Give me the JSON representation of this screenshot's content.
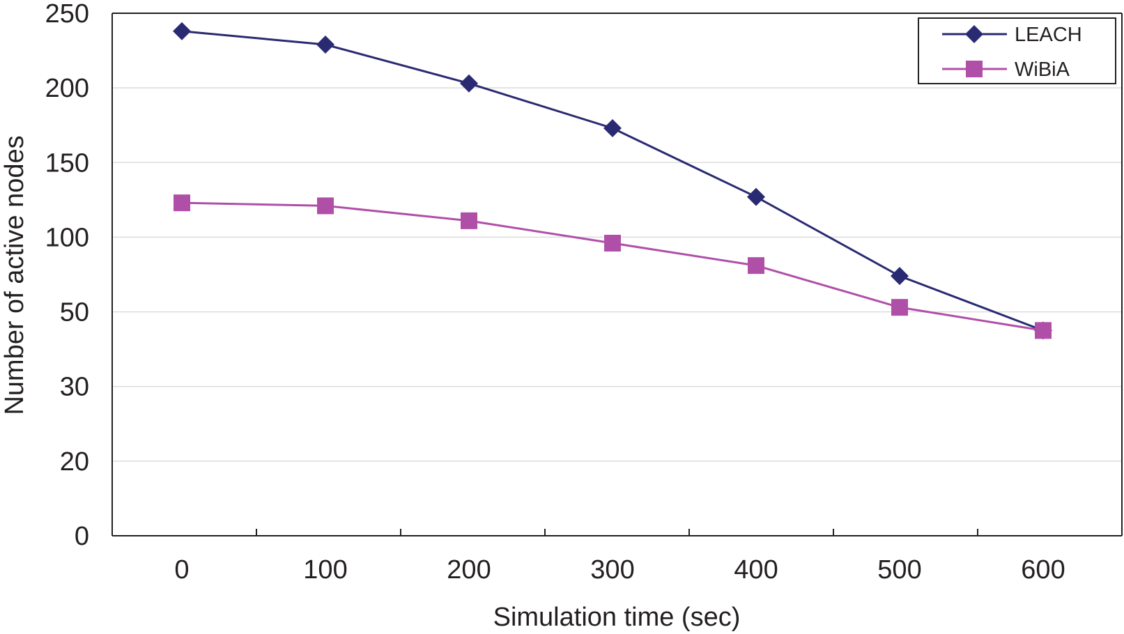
{
  "chart_data": {
    "type": "line",
    "title": "",
    "xlabel": "Simulation time (sec)",
    "ylabel": "Number of active nodes",
    "categories": [
      "0",
      "100",
      "200",
      "300",
      "400",
      "500",
      "600"
    ],
    "y_tick_labels": [
      "0",
      "20",
      "30",
      "50",
      "100",
      "150",
      "200",
      "250"
    ],
    "y_scale_note": "non-linear, evenly spaced tick labels",
    "ylim": [
      0,
      250
    ],
    "grid": "horizontal",
    "legend_position": "top-right",
    "series": [
      {
        "name": "LEACH",
        "values": [
          238,
          229,
          203,
          173,
          127,
          74,
          45
        ],
        "color": "#2a2a72",
        "marker": "diamond"
      },
      {
        "name": "WiBiA",
        "values": [
          123,
          121,
          111,
          96,
          81,
          53,
          45
        ],
        "color": "#b04fa8",
        "marker": "square"
      }
    ]
  }
}
